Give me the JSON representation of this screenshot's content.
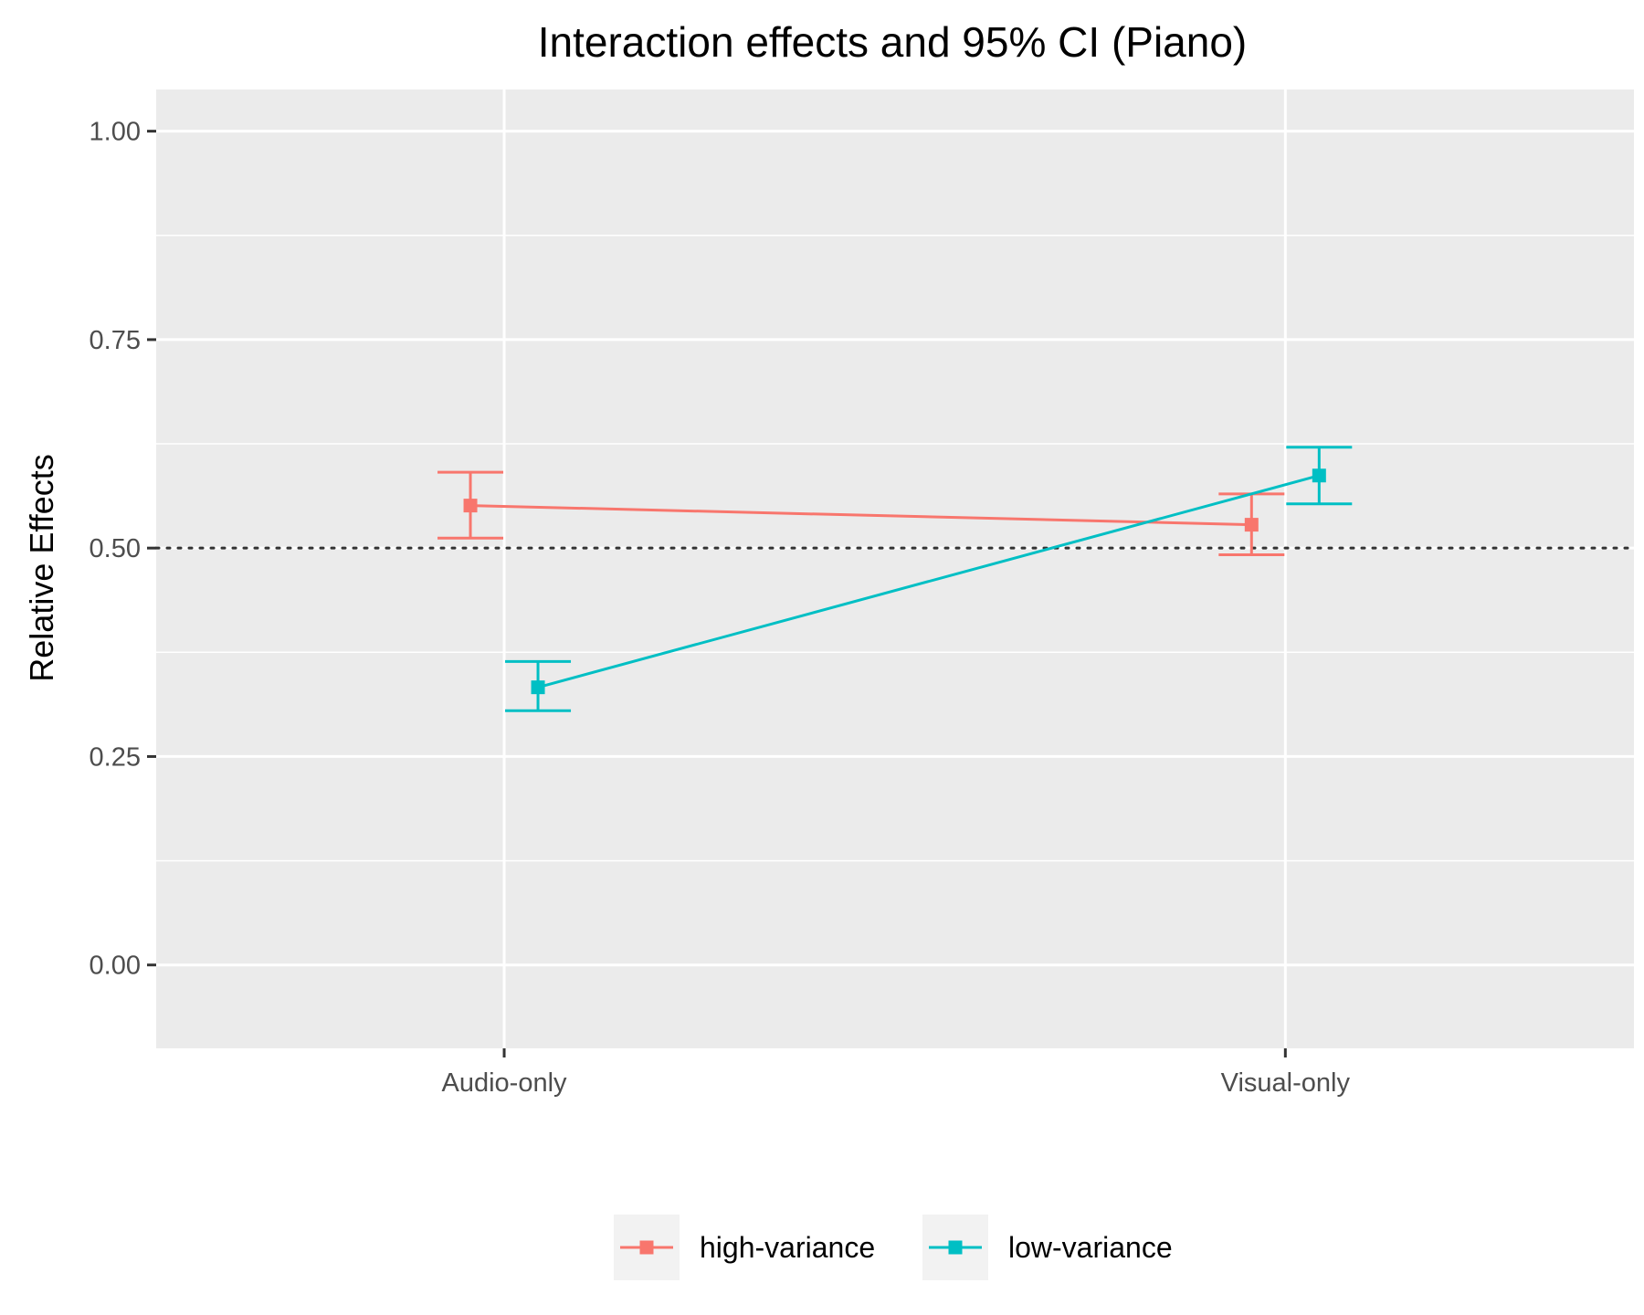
{
  "chart_data": {
    "type": "line",
    "title": "Interaction effects and 95% CI (Piano)",
    "xlabel": "",
    "ylabel": "Relative Effects",
    "categories": [
      "Audio-only",
      "Visual-only"
    ],
    "ylim": [
      -0.1,
      1.05
    ],
    "yticks": [
      0.0,
      0.25,
      0.5,
      0.75,
      1.0
    ],
    "ytick_labels": [
      "0.00",
      "0.25",
      "0.50",
      "0.75",
      "1.00"
    ],
    "reference_line": 0.5,
    "grid": true,
    "legend_position": "bottom",
    "series": [
      {
        "name": "high-variance",
        "color": "#F8766D",
        "values": [
          0.551,
          0.528
        ],
        "lower": [
          0.512,
          0.492
        ],
        "upper": [
          0.591,
          0.565
        ]
      },
      {
        "name": "low-variance",
        "color": "#00BFC4",
        "values": [
          0.333,
          0.587
        ],
        "lower": [
          0.305,
          0.553
        ],
        "upper": [
          0.364,
          0.621
        ]
      }
    ]
  }
}
